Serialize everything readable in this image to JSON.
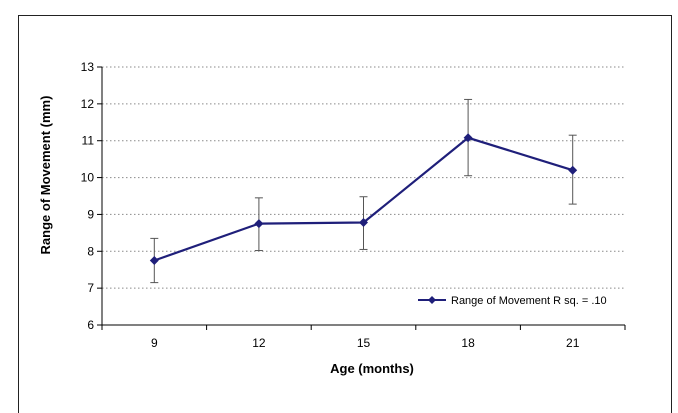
{
  "chart_data": {
    "type": "line",
    "categories": [
      "9",
      "12",
      "15",
      "18",
      "21"
    ],
    "series": [
      {
        "name": "Range of Movement R sq. = .10",
        "values": [
          7.75,
          8.75,
          8.78,
          11.08,
          10.2
        ],
        "error_low": [
          7.15,
          8.02,
          8.05,
          10.05,
          9.28
        ],
        "error_high": [
          8.35,
          9.45,
          9.48,
          12.12,
          11.15
        ]
      }
    ],
    "xlabel": "Age (months)",
    "ylabel": "Range of Movement (mm)",
    "ylim": [
      6,
      13
    ],
    "yticks": [
      "6",
      "7",
      "8",
      "9",
      "10",
      "11",
      "12",
      "13"
    ],
    "grid": "horizontal dotted",
    "legend_position": "bottom-right",
    "line_color": "#1f1f7a"
  }
}
